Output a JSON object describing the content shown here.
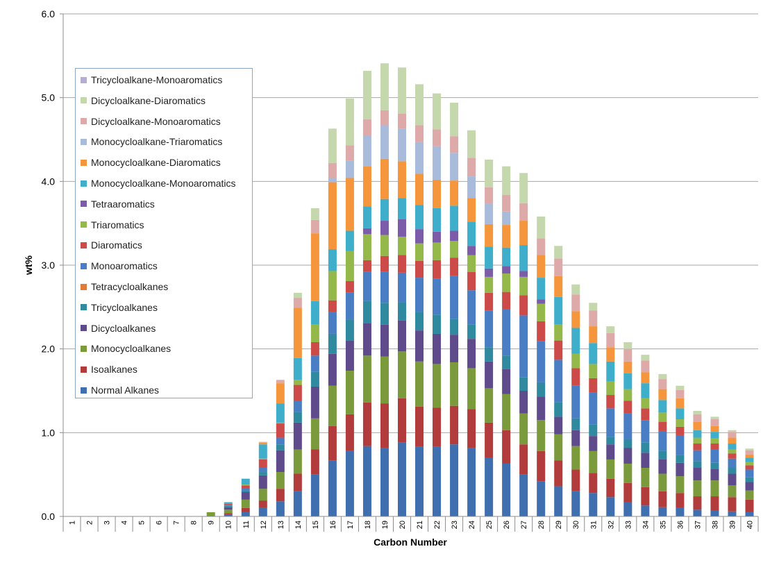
{
  "chart_data": {
    "type": "bar",
    "stacked": true,
    "xlabel": "Carbon Number",
    "ylabel": "wt%",
    "ylim": [
      0,
      6
    ],
    "yticks": [
      "0.0",
      "1.0",
      "2.0",
      "3.0",
      "4.0",
      "5.0",
      "6.0"
    ],
    "grid": true,
    "legend_placement": "top-left",
    "categories": [
      "1",
      "2",
      "3",
      "4",
      "5",
      "6",
      "7",
      "8",
      "9",
      "10",
      "11",
      "12",
      "13",
      "14",
      "15",
      "16",
      "17",
      "18",
      "19",
      "20",
      "21",
      "22",
      "23",
      "24",
      "25",
      "26",
      "27",
      "28",
      "29",
      "30",
      "31",
      "32",
      "33",
      "34",
      "35",
      "36",
      "37",
      "38",
      "39",
      "40"
    ],
    "series": [
      {
        "name": "Normal Alkanes",
        "color": "#3f6faf",
        "values": [
          0,
          0,
          0,
          0,
          0,
          0,
          0,
          0,
          0,
          0.02,
          0.05,
          0.1,
          0.18,
          0.3,
          0.5,
          0.67,
          0.78,
          0.84,
          0.82,
          0.88,
          0.83,
          0.83,
          0.86,
          0.82,
          0.7,
          0.63,
          0.5,
          0.42,
          0.36,
          0.3,
          0.28,
          0.23,
          0.17,
          0.13,
          0.11,
          0.1,
          0.08,
          0.07,
          0.06,
          0.05
        ]
      },
      {
        "name": "Isoalkanes",
        "color": "#b23c3c",
        "values": [
          0,
          0,
          0,
          0,
          0,
          0,
          0,
          0,
          0,
          0.02,
          0.05,
          0.09,
          0.15,
          0.21,
          0.3,
          0.41,
          0.44,
          0.52,
          0.53,
          0.53,
          0.48,
          0.47,
          0.46,
          0.46,
          0.42,
          0.4,
          0.36,
          0.36,
          0.31,
          0.26,
          0.24,
          0.22,
          0.23,
          0.22,
          0.19,
          0.18,
          0.16,
          0.17,
          0.17,
          0.15
        ]
      },
      {
        "name": "Monocycloalkanes",
        "color": "#7a9a3c",
        "values": [
          0,
          0,
          0,
          0,
          0,
          0,
          0,
          0,
          0.05,
          0.04,
          0.1,
          0.14,
          0.2,
          0.29,
          0.37,
          0.48,
          0.52,
          0.56,
          0.56,
          0.56,
          0.54,
          0.52,
          0.52,
          0.49,
          0.41,
          0.43,
          0.37,
          0.37,
          0.31,
          0.28,
          0.26,
          0.23,
          0.23,
          0.23,
          0.21,
          0.2,
          0.19,
          0.19,
          0.14,
          0.11
        ]
      },
      {
        "name": "Dicycloalkanes",
        "color": "#5f4a8b",
        "values": [
          0,
          0,
          0,
          0,
          0,
          0,
          0,
          0,
          0,
          0.03,
          0.09,
          0.16,
          0.26,
          0.32,
          0.38,
          0.38,
          0.36,
          0.39,
          0.38,
          0.37,
          0.37,
          0.36,
          0.33,
          0.35,
          0.32,
          0.3,
          0.27,
          0.28,
          0.21,
          0.19,
          0.18,
          0.18,
          0.19,
          0.18,
          0.17,
          0.16,
          0.15,
          0.14,
          0.14,
          0.1
        ]
      },
      {
        "name": "Tricycloalkanes",
        "color": "#2f8aa0",
        "values": [
          0,
          0,
          0,
          0,
          0,
          0,
          0,
          0,
          0,
          0.02,
          0.02,
          0.04,
          0.07,
          0.13,
          0.18,
          0.24,
          0.25,
          0.26,
          0.26,
          0.22,
          0.22,
          0.23,
          0.19,
          0.17,
          0.17,
          0.16,
          0.16,
          0.17,
          0.17,
          0.14,
          0.14,
          0.09,
          0.1,
          0.12,
          0.1,
          0.09,
          0.08,
          0.07,
          0.07,
          0.06
        ]
      },
      {
        "name": "Tetracycloalkanes",
        "color": "#e07b39",
        "values": [
          0,
          0,
          0,
          0,
          0,
          0,
          0,
          0,
          0,
          0,
          0,
          0,
          0,
          0,
          0,
          0,
          0,
          0,
          0,
          0,
          0,
          0,
          0,
          0,
          0,
          0,
          0,
          0,
          0,
          0,
          0,
          0,
          0,
          0,
          0,
          0,
          0,
          0,
          0,
          0
        ]
      },
      {
        "name": "Monoaromatics",
        "color": "#4a7ec4",
        "values": [
          0,
          0,
          0,
          0,
          0,
          0,
          0,
          0,
          0,
          0.01,
          0.03,
          0.05,
          0.08,
          0.13,
          0.19,
          0.26,
          0.32,
          0.35,
          0.37,
          0.35,
          0.41,
          0.43,
          0.51,
          0.41,
          0.44,
          0.55,
          0.74,
          0.49,
          0.51,
          0.39,
          0.38,
          0.34,
          0.31,
          0.27,
          0.24,
          0.24,
          0.13,
          0.16,
          0.11,
          0.09
        ]
      },
      {
        "name": "Diaromatics",
        "color": "#cc4a47",
        "values": [
          0,
          0,
          0,
          0,
          0,
          0,
          0,
          0,
          0,
          0.01,
          0.03,
          0.1,
          0.17,
          0.19,
          0.16,
          0.14,
          0.14,
          0.14,
          0.19,
          0.21,
          0.2,
          0.22,
          0.22,
          0.22,
          0.21,
          0.21,
          0.24,
          0.24,
          0.23,
          0.21,
          0.17,
          0.16,
          0.15,
          0.14,
          0.11,
          0.1,
          0.08,
          0.07,
          0.06,
          0.05
        ]
      },
      {
        "name": "Triaromatics",
        "color": "#94b84a",
        "values": [
          0,
          0,
          0,
          0,
          0,
          0,
          0,
          0,
          0,
          0,
          0.01,
          0.01,
          0.01,
          0.06,
          0.21,
          0.35,
          0.36,
          0.31,
          0.25,
          0.22,
          0.21,
          0.21,
          0.2,
          0.2,
          0.19,
          0.22,
          0.22,
          0.21,
          0.19,
          0.17,
          0.17,
          0.16,
          0.14,
          0.12,
          0.11,
          0.09,
          0.07,
          0.06,
          0.05,
          0.04
        ]
      },
      {
        "name": "Tetraaromatics",
        "color": "#7c5ca8",
        "values": [
          0,
          0,
          0,
          0,
          0,
          0,
          0,
          0,
          0,
          0,
          0,
          0,
          0,
          0,
          0,
          0,
          0,
          0.07,
          0.17,
          0.21,
          0.17,
          0.13,
          0.12,
          0.11,
          0.1,
          0.09,
          0.07,
          0.05,
          0,
          0,
          0,
          0,
          0,
          0,
          0,
          0,
          0,
          0,
          0,
          0
        ]
      },
      {
        "name": "Monocycloalkane-Monoaromatics",
        "color": "#3faecb",
        "values": [
          0,
          0,
          0,
          0,
          0,
          0,
          0,
          0,
          0,
          0.02,
          0.07,
          0.17,
          0.23,
          0.26,
          0.28,
          0.26,
          0.24,
          0.26,
          0.26,
          0.25,
          0.29,
          0.28,
          0.3,
          0.29,
          0.26,
          0.22,
          0.31,
          0.26,
          0.33,
          0.31,
          0.25,
          0.24,
          0.19,
          0.18,
          0.15,
          0.13,
          0.09,
          0.08,
          0.07,
          0.05
        ]
      },
      {
        "name": "Monocycloalkane-Diaromatics",
        "color": "#f5963c",
        "values": [
          0,
          0,
          0,
          0,
          0,
          0,
          0,
          0,
          0,
          0,
          0,
          0.02,
          0.24,
          0.6,
          0.81,
          0.8,
          0.63,
          0.48,
          0.48,
          0.44,
          0.37,
          0.34,
          0.3,
          0.28,
          0.27,
          0.27,
          0.29,
          0.27,
          0.25,
          0.2,
          0.2,
          0.17,
          0.14,
          0.13,
          0.13,
          0.12,
          0.1,
          0.07,
          0.07,
          0.04
        ]
      },
      {
        "name": "Monocycloalkane-Triaromatics",
        "color": "#a9bbdb",
        "values": [
          0,
          0,
          0,
          0,
          0,
          0,
          0,
          0,
          0,
          0,
          0,
          0,
          0,
          0,
          0,
          0.05,
          0.21,
          0.37,
          0.4,
          0.39,
          0.38,
          0.4,
          0.33,
          0.26,
          0.24,
          0.16,
          0,
          0,
          0,
          0,
          0,
          0,
          0,
          0,
          0,
          0,
          0,
          0,
          0,
          0
        ]
      },
      {
        "name": "Dicycloalkane-Monoaromatics",
        "color": "#deaaa9",
        "values": [
          0,
          0,
          0,
          0,
          0,
          0,
          0,
          0,
          0,
          0,
          0,
          0.01,
          0.04,
          0.12,
          0.16,
          0.18,
          0.18,
          0.19,
          0.18,
          0.18,
          0.2,
          0.2,
          0.2,
          0.22,
          0.2,
          0.2,
          0.21,
          0.2,
          0.21,
          0.2,
          0.19,
          0.17,
          0.15,
          0.14,
          0.12,
          0.1,
          0.09,
          0.08,
          0.07,
          0.05
        ]
      },
      {
        "name": "Dicycloalkane-Diaromatics",
        "color": "#c5d8ad",
        "values": [
          0,
          0,
          0,
          0,
          0,
          0,
          0,
          0,
          0,
          0,
          0,
          0,
          0,
          0.06,
          0.14,
          0.41,
          0.56,
          0.58,
          0.56,
          0.55,
          0.49,
          0.43,
          0.4,
          0.33,
          0.33,
          0.34,
          0.36,
          0.26,
          0.15,
          0.12,
          0.09,
          0.08,
          0.08,
          0.07,
          0.06,
          0.05,
          0.04,
          0.03,
          0.02,
          0.02
        ]
      },
      {
        "name": "Tricycloalkane-Monoaromatics",
        "color": "#b7acd1",
        "values": [
          0,
          0,
          0,
          0,
          0,
          0,
          0,
          0,
          0,
          0,
          0,
          0,
          0,
          0,
          0,
          0,
          0,
          0,
          0,
          0,
          0,
          0,
          0,
          0,
          0,
          0,
          0,
          0,
          0,
          0,
          0,
          0,
          0,
          0,
          0,
          0,
          0,
          0,
          0,
          0
        ]
      }
    ]
  }
}
